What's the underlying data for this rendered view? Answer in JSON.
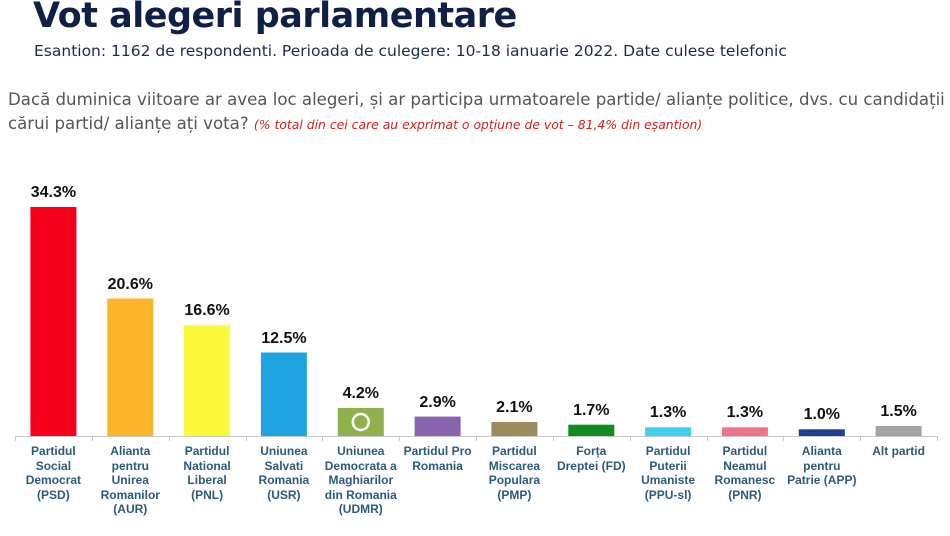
{
  "header": {
    "title": "Vot alegeri parlamentare",
    "subtitle": "Esantion: 1162 de respondenti. Perioada de culegere: 10-18 ianuarie 2022. Date culese telefonic"
  },
  "question": {
    "text": "Dacă duminica viitoare ar avea loc alegeri, și ar participa  urmatoarele partide/ alianțe politice, dvs. cu candidații cărui partid/ alianțe ați vota? ",
    "note": "(% total din cei care au exprimat o opțiune de vot – 81,4% din eșantion)"
  },
  "chart_data": {
    "type": "bar",
    "title": "Vot alegeri parlamentare",
    "xlabel": "",
    "ylabel": "",
    "ylim": [
      0,
      35
    ],
    "grid": false,
    "legend": "none",
    "categories": [
      "Partidul\nSocial\nDemocrat\n(PSD)",
      "Alianta\npentru\nUnirea\nRomanilor\n(AUR)",
      "Partidul\nNational\nLiberal\n(PNL)",
      "Uniunea\nSalvati\nRomania\n(USR)",
      "Uniunea\nDemocrata a\nMaghiarilor\ndin Romania\n(UDMR)",
      "Partidul Pro\nRomania",
      "Partidul\nMiscarea\nPopulara\n(PMP)",
      "Forța\nDreptei (FD)",
      "Partidul\nPuterii\nUmaniste\n(PPU-sl)",
      "Partidul\nNeamul\nRomanesc\n(PNR)",
      "Alianta\npentru\nPatrie (APP)",
      "Alt partid"
    ],
    "values": [
      34.3,
      20.6,
      16.6,
      12.5,
      4.2,
      2.9,
      2.1,
      1.7,
      1.3,
      1.3,
      1.0,
      1.5
    ],
    "data_labels": [
      "34.3%",
      "20.6%",
      "16.6%",
      "12.5%",
      "4.2%",
      "2.9%",
      "2.1%",
      "1.7%",
      "1.3%",
      "1.3%",
      "1.0%",
      "1.5%"
    ],
    "colors": [
      "#f5001a",
      "#fbb52a",
      "#fbfa3a",
      "#1ea3e3",
      "#8fb04d",
      "#8a63ad",
      "#9a8c5c",
      "#118a1f",
      "#3fd0ef",
      "#ee7388",
      "#1d3e95",
      "#a3a3a3"
    ],
    "marker": {
      "category_index": 4,
      "type": "white-ring"
    }
  }
}
